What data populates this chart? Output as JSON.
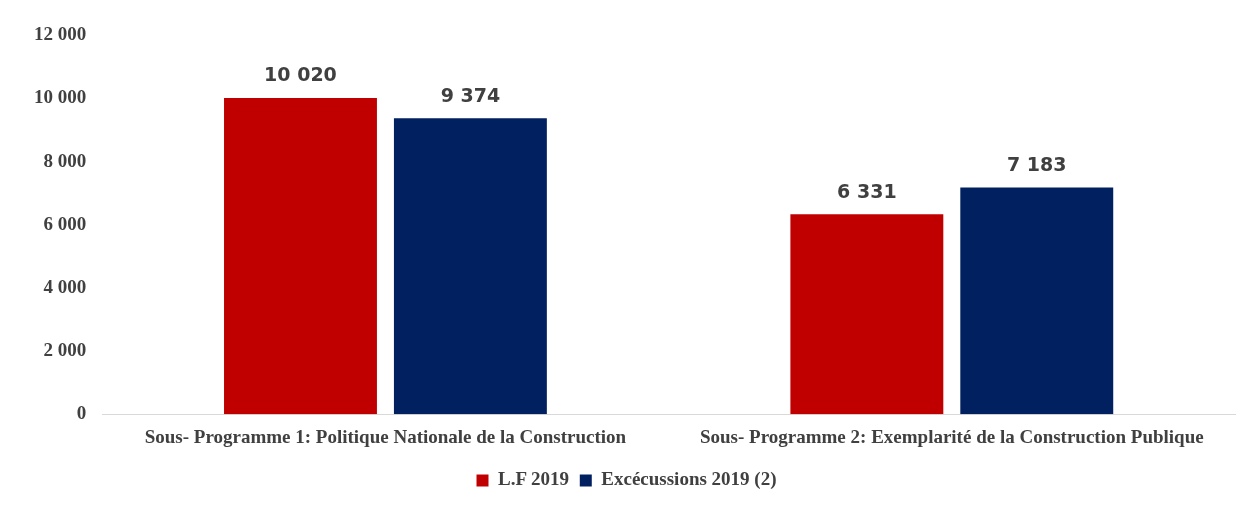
{
  "chart_data": {
    "type": "bar",
    "categories": [
      "Sous- Programme 1: Politique Nationale de la Construction",
      "Sous- Programme 2: Exemplarité de la Construction Publique"
    ],
    "series": [
      {
        "name": "L.F 2019",
        "color": "#c00000",
        "values": [
          10020,
          6331
        ]
      },
      {
        "name": "Excécussions 2019 (2)",
        "color": "#002060",
        "values": [
          9374,
          7183
        ]
      }
    ],
    "ylim": [
      0,
      12000
    ],
    "yticks": [
      {
        "value": 0,
        "label": "0"
      },
      {
        "value": 2000,
        "label": "2 000"
      },
      {
        "value": 4000,
        "label": "4 000"
      },
      {
        "value": 6000,
        "label": "6 000"
      },
      {
        "value": 8000,
        "label": "8 000"
      },
      {
        "value": 10000,
        "label": "10 000"
      },
      {
        "value": 12000,
        "label": "12 000"
      }
    ],
    "grid": false,
    "legend": "bottom",
    "data_labels": true
  }
}
